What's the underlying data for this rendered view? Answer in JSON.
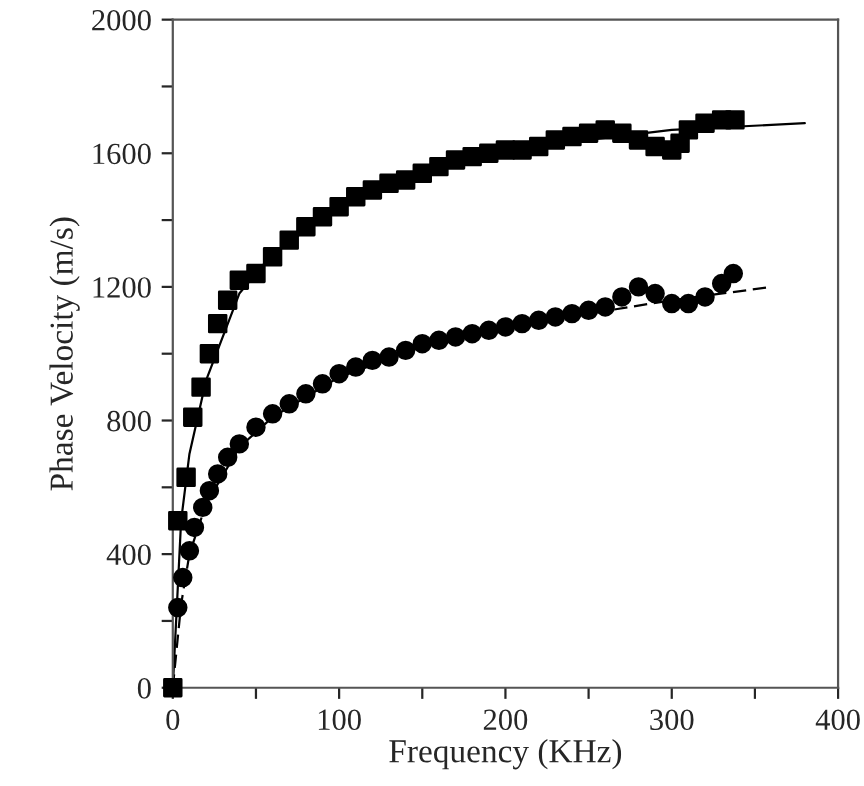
{
  "chart_data": {
    "type": "scatter",
    "xlabel": "Frequency (KHz)",
    "ylabel": "Phase Velocity (m/s)",
    "xlim": [
      0,
      400
    ],
    "ylim": [
      0,
      2000
    ],
    "xticks": [
      0,
      {
        "value": 50,
        "label": null
      },
      100,
      {
        "value": 150,
        "label": null
      },
      200,
      {
        "value": 250,
        "label": null
      },
      300,
      {
        "value": 350,
        "label": null
      },
      400
    ],
    "yticks": [
      0,
      {
        "value": 200,
        "label": null
      },
      400,
      {
        "value": 600,
        "label": null
      },
      800,
      {
        "value": 1000,
        "label": null
      },
      1200,
      {
        "value": 1400,
        "label": null
      },
      1600,
      {
        "value": 1800,
        "label": null
      },
      2000
    ],
    "grid": false,
    "series": [
      {
        "marker": "square",
        "color": "#000000",
        "x": [
          0,
          3,
          8,
          12,
          17,
          22,
          27,
          33,
          40,
          50,
          60,
          70,
          80,
          90,
          100,
          110,
          120,
          130,
          140,
          150,
          160,
          170,
          180,
          190,
          200,
          210,
          220,
          230,
          240,
          250,
          260,
          270,
          280,
          290,
          300,
          305,
          310,
          320,
          330,
          338
        ],
        "values": [
          0,
          500,
          630,
          810,
          900,
          1000,
          1090,
          1160,
          1220,
          1240,
          1290,
          1340,
          1380,
          1410,
          1440,
          1470,
          1490,
          1510,
          1520,
          1540,
          1560,
          1580,
          1590,
          1600,
          1610,
          1610,
          1620,
          1640,
          1650,
          1660,
          1670,
          1660,
          1640,
          1620,
          1610,
          1630,
          1670,
          1690,
          1700,
          1700
        ]
      },
      {
        "marker": "circle",
        "color": "#000000",
        "x": [
          3,
          6,
          10,
          13,
          18,
          22,
          27,
          33,
          40,
          50,
          60,
          70,
          80,
          90,
          100,
          110,
          120,
          130,
          140,
          150,
          160,
          170,
          180,
          190,
          200,
          210,
          220,
          230,
          240,
          250,
          260,
          270,
          280,
          290,
          300,
          310,
          320,
          330,
          337
        ],
        "values": [
          240,
          330,
          410,
          480,
          540,
          590,
          640,
          690,
          730,
          780,
          820,
          850,
          880,
          910,
          940,
          960,
          980,
          990,
          1010,
          1030,
          1040,
          1050,
          1060,
          1070,
          1080,
          1090,
          1100,
          1110,
          1120,
          1130,
          1140,
          1170,
          1200,
          1180,
          1150,
          1150,
          1170,
          1210,
          1240
        ]
      },
      {
        "type": "line",
        "marker": "none",
        "line_style": "solid",
        "color": "#000000",
        "x": [
          0,
          5,
          10,
          20,
          40,
          60,
          100,
          150,
          200,
          250,
          300,
          380
        ],
        "values": [
          0,
          500,
          700,
          920,
          1180,
          1300,
          1440,
          1540,
          1600,
          1640,
          1670,
          1690
        ]
      },
      {
        "type": "line",
        "marker": "none",
        "line_style": "dashed",
        "color": "#000000",
        "x": [
          0,
          5,
          10,
          20,
          40,
          60,
          100,
          150,
          200,
          250,
          300,
          360
        ],
        "values": [
          0,
          250,
          400,
          550,
          720,
          810,
          930,
          1020,
          1080,
          1120,
          1160,
          1200
        ]
      }
    ]
  }
}
